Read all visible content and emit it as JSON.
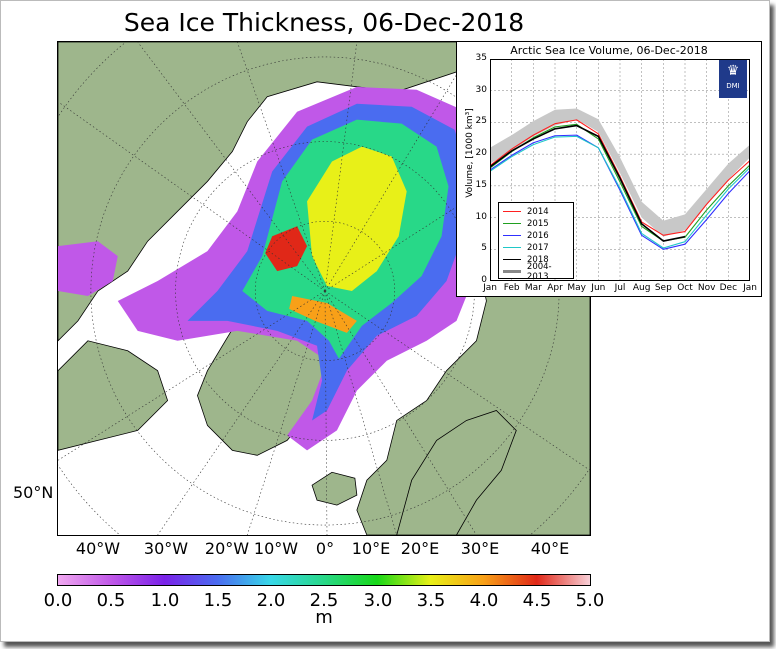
{
  "page": {
    "title": "Sea Ice Thickness, 06-Dec-2018"
  },
  "map": {
    "lon_labels": [
      "40°W",
      "30°W",
      "20°W",
      "10°W",
      "0°",
      "10°E",
      "20°E",
      "30°E",
      "40°E"
    ],
    "lat_label": "50°N",
    "colors": {
      "land": "#9eb68c",
      "ocean": "#ffffff",
      "coastline": "#000000"
    }
  },
  "colorbar": {
    "ticks": [
      "0.0",
      "0.5",
      "1.0",
      "1.5",
      "2.0",
      "2.5",
      "3.0",
      "3.5",
      "4.0",
      "4.5",
      "5.0"
    ],
    "unit": "m",
    "colors": [
      "#f0a8f0",
      "#c058e8",
      "#7a22e8",
      "#4a6cf0",
      "#38d8e8",
      "#28d888",
      "#18d818",
      "#e8f018",
      "#f8a018",
      "#e02818",
      "#f8d0d8"
    ]
  },
  "inset": {
    "logo_text": "DMI",
    "chart_data": {
      "type": "line",
      "title": "Arctic Sea Ice Volume, 06-Dec-2018",
      "ylabel": "Volume, [1000 km³]",
      "xlabel": "",
      "months": [
        "Jan",
        "Feb",
        "Mar",
        "Apr",
        "May",
        "Jun",
        "Jul",
        "Aug",
        "Sep",
        "Oct",
        "Nov",
        "Dec",
        "Jan"
      ],
      "x": [
        0,
        1,
        2,
        3,
        4,
        5,
        6,
        7,
        8,
        9,
        10,
        11,
        12
      ],
      "ylim": [
        0,
        35
      ],
      "yticks": [
        0,
        5,
        10,
        15,
        20,
        25,
        30,
        35
      ],
      "grid": true,
      "legend_position": "lower-left",
      "band": {
        "name": "2004-2013",
        "color": "#c8c8c8",
        "lower": [
          18.5,
          20.5,
          22.8,
          24.5,
          25.5,
          23.5,
          17,
          10,
          7,
          8,
          12,
          16,
          19.5
        ],
        "upper": [
          21,
          23,
          25.2,
          27,
          27.2,
          25.5,
          19.5,
          12.5,
          9.5,
          10.5,
          14.5,
          18.5,
          21.5
        ]
      },
      "series": [
        {
          "name": "2014",
          "color": "#ff2020",
          "values": [
            18.2,
            20.8,
            23,
            24.8,
            25.4,
            23.2,
            16.5,
            9.3,
            7.2,
            7.8,
            12.1,
            15.9,
            19
          ]
        },
        {
          "name": "2015",
          "color": "#20a020",
          "values": [
            17.8,
            20.4,
            22.6,
            24.3,
            24.7,
            22.4,
            15.6,
            8.6,
            6.3,
            6.9,
            11.2,
            15,
            18.3
          ]
        },
        {
          "name": "2016",
          "color": "#3030ff",
          "values": [
            17.5,
            19.8,
            21.8,
            22.9,
            23,
            21,
            14.3,
            7.2,
            5,
            5.8,
            9.7,
            13.8,
            17.4
          ]
        },
        {
          "name": "2017",
          "color": "#20c8c8",
          "values": [
            17.3,
            19.6,
            21.5,
            22.7,
            22.8,
            21,
            14.6,
            7.5,
            5.2,
            6.2,
            10.4,
            14.5,
            17.9
          ]
        },
        {
          "name": "2018",
          "color": "#000000",
          "values": [
            18,
            20.5,
            22.4,
            24,
            24.5,
            22.8,
            16.2,
            9,
            6.3,
            7,
            null,
            null,
            null
          ]
        }
      ]
    }
  }
}
